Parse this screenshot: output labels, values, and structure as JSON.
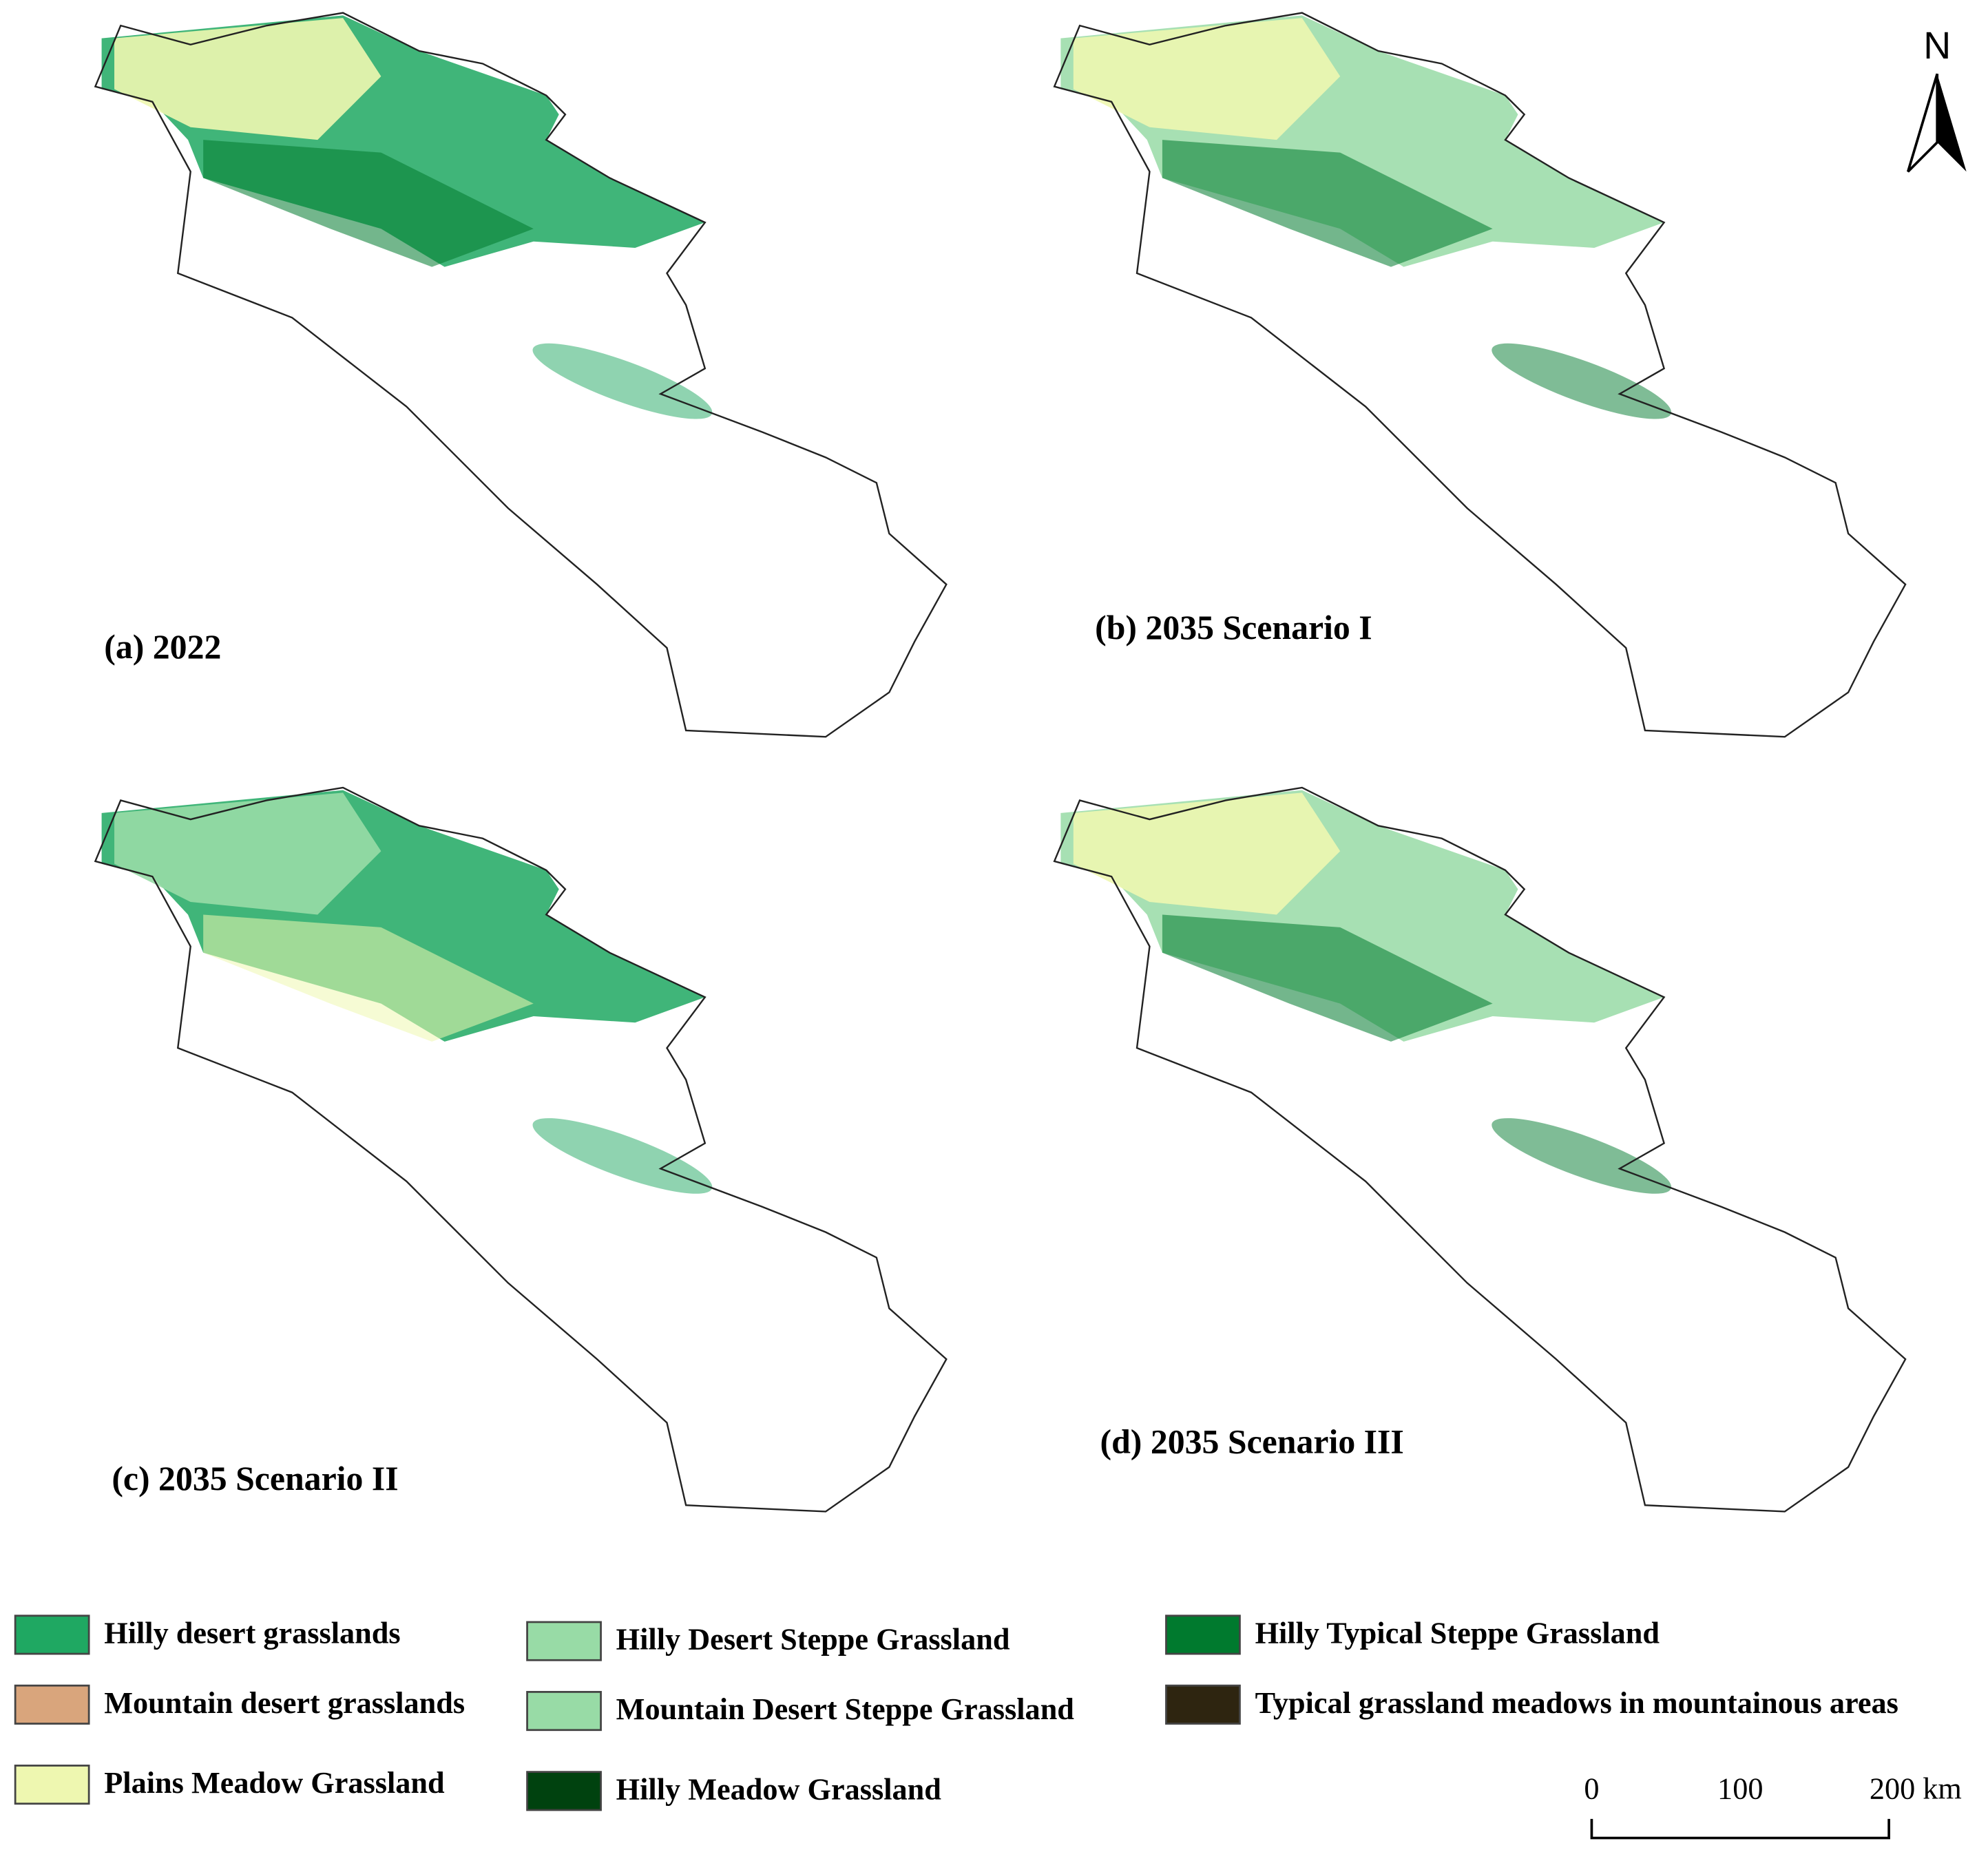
{
  "panels": [
    {
      "label": "(a) 2022"
    },
    {
      "label": "(b) 2035 Scenario I"
    },
    {
      "label": "(c) 2035 Scenario II"
    },
    {
      "label": "(d) 2035 Scenario III"
    }
  ],
  "north": "N",
  "legend": [
    {
      "label": "Hilly desert grasslands",
      "color": "#1fa862"
    },
    {
      "label": "Mountain desert grasslands",
      "color": "#d9a57c"
    },
    {
      "label": "Plains Meadow Grassland",
      "color": "#eef7b0"
    },
    {
      "label": "Hilly Desert Steppe Grassland",
      "color": "#98dba6"
    },
    {
      "label": "Mountain Desert Steppe Grassland",
      "color": "#98dba6"
    },
    {
      "label": "Hilly Meadow Grassland",
      "color": "#00420f"
    },
    {
      "label": "Hilly Typical Steppe Grassland",
      "color": "#007a2e"
    },
    {
      "label": "Typical grassland meadows in mountainous areas",
      "color": "#2e2510"
    }
  ],
  "scale_bar": {
    "labels": [
      "0",
      "100",
      "200 km"
    ]
  }
}
